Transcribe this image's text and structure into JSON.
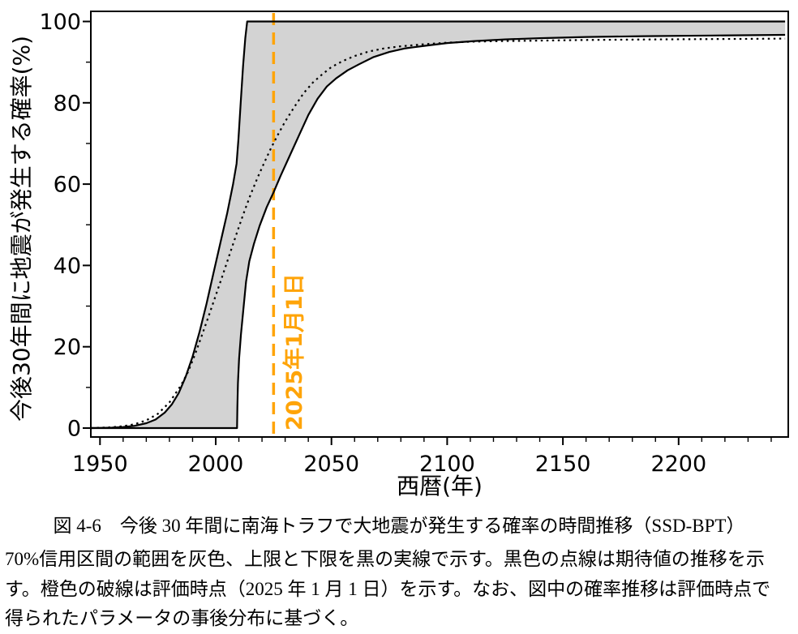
{
  "figure": {
    "caption_title": "図 4-6　今後 30 年間に南海トラフで大地震が発生する確率の時間推移（SSD-BPT）",
    "caption_lines": [
      "70%信用区間の範囲を灰色、上限と下限を黒の実線で示す。黒色の点線は期待値の推移を示",
      "す。橙色の破線は評価時点（2025 年 1 月 1 日）を示す。なお、図中の確率推移は評価時点で",
      "得られたパラメータの事後分布に基づく。"
    ]
  },
  "chart_data": {
    "type": "line",
    "title": "今後30年間に南海トラフで大地震が発生する確率の時間推移 (SSD-BPT)",
    "xlabel": "西暦(年)",
    "ylabel": "今後30年間に地震が発生する確率(%)",
    "xlim": [
      1946,
      2247
    ],
    "ylim": [
      -2.2,
      102.5
    ],
    "x_ticks": [
      1950,
      2000,
      2050,
      2100,
      2150,
      2200
    ],
    "x_minor_step": 10,
    "x_minor_range": [
      1950,
      2240
    ],
    "y_ticks": [
      0,
      20,
      40,
      60,
      80,
      100
    ],
    "y_minor_ticks": [
      10,
      30,
      50,
      70,
      90
    ],
    "grid": false,
    "legend": "none",
    "band_fill_color": "#d3d3d3",
    "line_color": "#000000",
    "annotation": {
      "label": "2025年1月1日",
      "x": 2025,
      "color": "#ffa408",
      "style": "dashed-vertical"
    },
    "series": [
      {
        "name": "70%信用区間 上限",
        "style": "solid",
        "points": [
          [
            1946.2,
            0
          ],
          [
            1955,
            0.1
          ],
          [
            1960,
            0.25
          ],
          [
            1965,
            0.55
          ],
          [
            1970,
            1.2
          ],
          [
            1974,
            2.1
          ],
          [
            1978,
            3.8
          ],
          [
            1981,
            5.8
          ],
          [
            1984,
            8.6
          ],
          [
            1987,
            12.6
          ],
          [
            1990,
            17.6
          ],
          [
            1993,
            23.6
          ],
          [
            1996,
            30.5
          ],
          [
            1999,
            38
          ],
          [
            2002,
            45.5
          ],
          [
            2005,
            53
          ],
          [
            2007.5,
            60
          ],
          [
            2009,
            65
          ],
          [
            2009.8,
            71
          ],
          [
            2010.8,
            80
          ],
          [
            2011.8,
            89
          ],
          [
            2012.8,
            96
          ],
          [
            2013.6,
            100
          ],
          [
            2246,
            100
          ]
        ]
      },
      {
        "name": "70%信用区間 下限",
        "style": "solid",
        "points": [
          [
            1946.2,
            0
          ],
          [
            2009.2,
            0
          ],
          [
            2009.35,
            5
          ],
          [
            2009.6,
            11
          ],
          [
            2010.1,
            17
          ],
          [
            2010.9,
            23
          ],
          [
            2011.9,
            29
          ],
          [
            2013.1,
            36
          ],
          [
            2014.5,
            41
          ],
          [
            2016.5,
            45.3
          ],
          [
            2019,
            49.8
          ],
          [
            2022,
            54.3
          ],
          [
            2025,
            58
          ],
          [
            2028,
            62
          ],
          [
            2032,
            67
          ],
          [
            2036,
            72
          ],
          [
            2040,
            77
          ],
          [
            2044,
            81
          ],
          [
            2048,
            84
          ],
          [
            2052,
            86
          ],
          [
            2057,
            88
          ],
          [
            2062,
            89.5
          ],
          [
            2068,
            91.2
          ],
          [
            2075,
            92.5
          ],
          [
            2082,
            93.4
          ],
          [
            2090,
            94
          ],
          [
            2100,
            94.7
          ],
          [
            2112,
            95.2
          ],
          [
            2125,
            95.6
          ],
          [
            2140,
            95.9
          ],
          [
            2160,
            96.2
          ],
          [
            2185,
            96.4
          ],
          [
            2215,
            96.55
          ],
          [
            2246,
            96.7
          ]
        ]
      },
      {
        "name": "期待値",
        "style": "dotted",
        "points": [
          [
            1946.2,
            0
          ],
          [
            1955,
            0.2
          ],
          [
            1960,
            0.45
          ],
          [
            1965,
            0.95
          ],
          [
            1970,
            1.9
          ],
          [
            1975,
            3.5
          ],
          [
            1980,
            6.3
          ],
          [
            1985,
            10.5
          ],
          [
            1988,
            13.8
          ],
          [
            1991,
            18
          ],
          [
            1994,
            22.8
          ],
          [
            1997,
            27.6
          ],
          [
            2000,
            32.6
          ],
          [
            2003,
            37.6
          ],
          [
            2006,
            42.7
          ],
          [
            2009,
            47.8
          ],
          [
            2012,
            52.7
          ],
          [
            2015,
            57.3
          ],
          [
            2018,
            61.5
          ],
          [
            2021,
            65.3
          ],
          [
            2024,
            69
          ],
          [
            2027,
            72.3
          ],
          [
            2030,
            75.4
          ],
          [
            2034,
            79
          ],
          [
            2038,
            82.4
          ],
          [
            2042,
            85
          ],
          [
            2046,
            87
          ],
          [
            2050,
            88.8
          ],
          [
            2055,
            90.3
          ],
          [
            2060,
            91.5
          ],
          [
            2066,
            92.6
          ],
          [
            2073,
            93.4
          ],
          [
            2080,
            93.9
          ],
          [
            2090,
            94.4
          ],
          [
            2100,
            94.8
          ],
          [
            2112,
            95.05
          ],
          [
            2125,
            95.2
          ],
          [
            2140,
            95.3
          ],
          [
            2160,
            95.45
          ],
          [
            2190,
            95.6
          ],
          [
            2220,
            95.7
          ],
          [
            2246,
            95.8
          ]
        ]
      }
    ]
  }
}
